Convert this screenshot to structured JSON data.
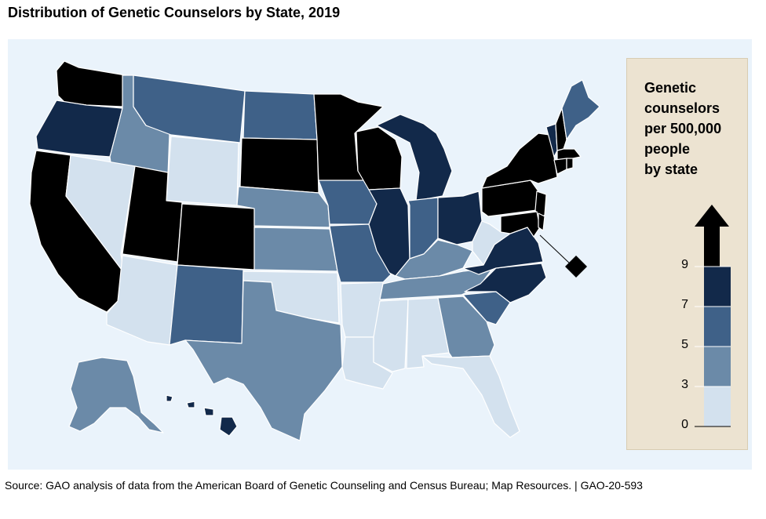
{
  "title": "Distribution of Genetic Counselors by State, 2019",
  "legend": {
    "title_lines": [
      "Genetic",
      "counselors",
      "per 500,000",
      "people",
      "by state"
    ],
    "ticks": [
      "9",
      "7",
      "5",
      "3",
      "0"
    ],
    "bins": [
      {
        "range": "0-3",
        "color": "#d3e1ee"
      },
      {
        "range": "3-5",
        "color": "#6b8aa8"
      },
      {
        "range": "5-7",
        "color": "#3f6188"
      },
      {
        "range": "7-9",
        "color": "#12294a"
      },
      {
        "range": "9+",
        "color": "#000000"
      }
    ]
  },
  "colors": {
    "background": "#eaf3fb",
    "border": "#ffffff",
    "dc_marker": "#000000"
  },
  "source": "Source: GAO analysis of data from the American Board of Genetic Counseling and Census Bureau; Map Resources.  |  GAO-20-593"
}
